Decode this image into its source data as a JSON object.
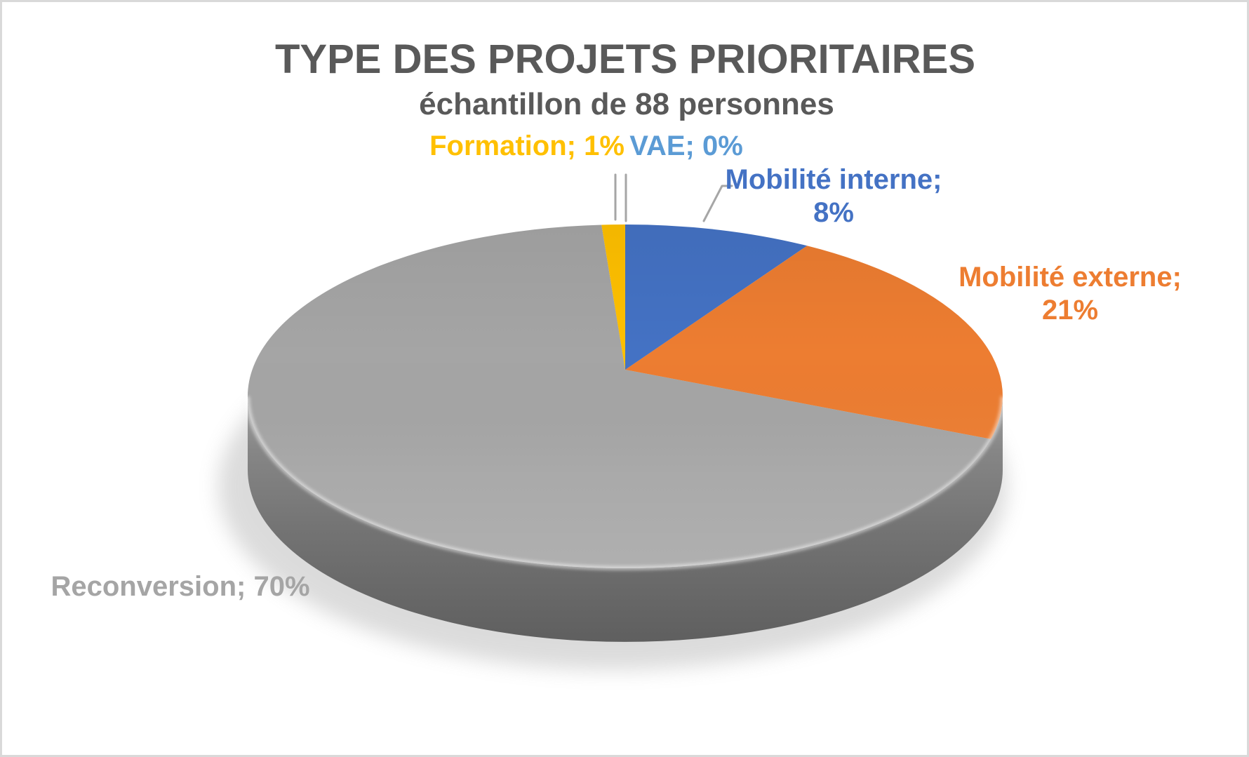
{
  "chart_data": {
    "type": "pie",
    "effect": "3d",
    "title": "TYPE DES PROJETS PRIORITAIRES",
    "subtitle": "échantillon de 88 personnes",
    "title_color": "#595959",
    "sample_size": 88,
    "unit": "%",
    "start_angle_deg": 0,
    "direction": "clockwise",
    "legend": "none",
    "slices": [
      {
        "name": "Mobilité interne",
        "value": 8,
        "color": "#4472C4"
      },
      {
        "name": "Mobilité externe",
        "value": 21,
        "color": "#ED7D31"
      },
      {
        "name": "Reconversion",
        "value": 70,
        "color": "#A5A5A5"
      },
      {
        "name": "Formation",
        "value": 1,
        "color": "#FFC000"
      },
      {
        "name": "VAE",
        "value": 0,
        "color": "#5B9BD5"
      }
    ],
    "data_labels": {
      "formation": "Formation; 1%",
      "vae": "VAE; 0%",
      "mobilite_interne_line1": "Mobilité interne;",
      "mobilite_interne_line2": "8%",
      "mobilite_externe_line1": "Mobilité externe;",
      "mobilite_externe_line2": "21%",
      "reconversion": "Reconversion; 70%"
    },
    "leader_line_color": "#A6A6A6"
  }
}
